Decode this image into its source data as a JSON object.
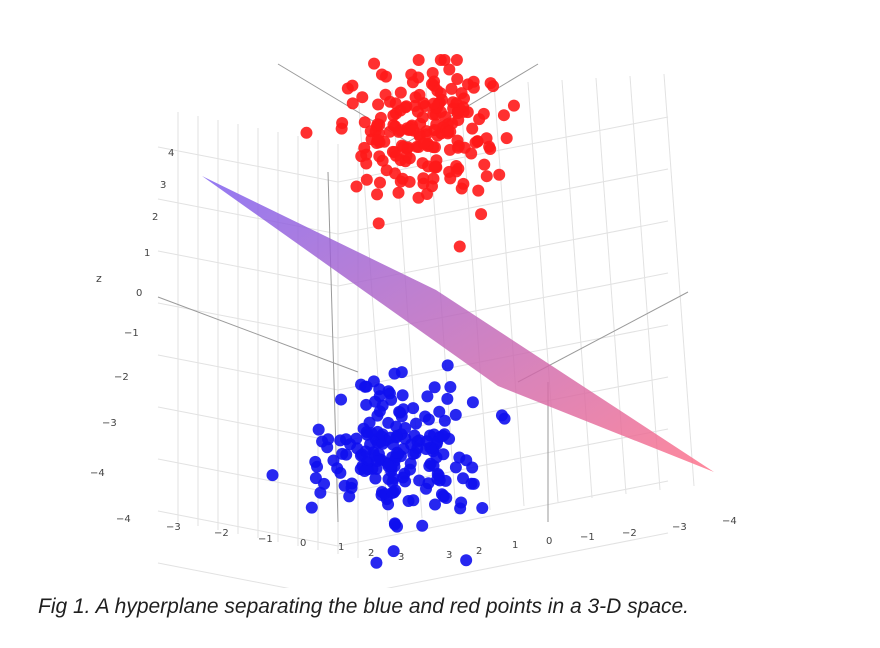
{
  "caption": "Fig 1. A hyperplane separating the blue and red points in a 3-D space.",
  "chart_data": {
    "type": "scatter",
    "projection": "3d",
    "title": "",
    "grid": true,
    "axes": {
      "z": {
        "label": "z",
        "ticks": [
          "4",
          "3",
          "2",
          "1",
          "0",
          "−1",
          "−2",
          "−3",
          "−4"
        ],
        "range": [
          -4,
          4
        ]
      },
      "x": {
        "label": "",
        "ticks": [
          "−4",
          "−3",
          "−2",
          "−1",
          "0",
          "1",
          "2",
          "3"
        ],
        "range": [
          -4,
          3
        ]
      },
      "y": {
        "label": "",
        "ticks": [
          "3",
          "2",
          "1",
          "0",
          "−1",
          "−2",
          "−3",
          "−4"
        ],
        "range": [
          -4,
          3
        ]
      }
    },
    "series": [
      {
        "color": "#ff1a1a",
        "center": [
          2.0,
          2.0,
          2.5
        ],
        "spread": [
          0.8,
          0.8,
          0.8
        ],
        "count": 190
      },
      {
        "color": "#1010ee",
        "center": [
          -2.0,
          -2.0,
          -2.5
        ],
        "spread": [
          0.8,
          0.8,
          0.8
        ],
        "count": 190
      }
    ],
    "surface": {
      "name": "hyperplane",
      "equation": "x + y + z = 0",
      "colorscale": [
        "#7b5cf0",
        "#ff6f86"
      ]
    }
  },
  "colors": {
    "red_points": "#ff1a1a",
    "blue_points": "#1010ee",
    "plane_start": "#7b5cf0",
    "plane_end": "#ff6f86"
  }
}
